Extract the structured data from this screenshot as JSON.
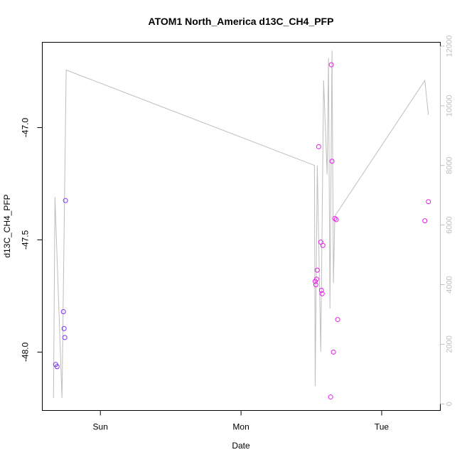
{
  "chart_data": {
    "type": "scatter",
    "title": "ATOM1 North_America d13C_CH4_PFP",
    "xlabel": "Date",
    "ylabel": "d13C_CH4_PFP",
    "x_ticks": [
      {
        "x": 0.333,
        "label": "Sun"
      },
      {
        "x": 1.333,
        "label": "Mon"
      },
      {
        "x": 2.333,
        "label": "Tue"
      }
    ],
    "y_ticks": [
      {
        "y": -47.0,
        "label": "-47.0"
      },
      {
        "y": -47.5,
        "label": "-47.5"
      },
      {
        "y": -48.0,
        "label": "-48.0"
      }
    ],
    "y2_ticks": [
      {
        "y": 0,
        "label": "0"
      },
      {
        "y": 2000,
        "label": "2000"
      },
      {
        "y": 4000,
        "label": "4000"
      },
      {
        "y": 6000,
        "label": "6000"
      },
      {
        "y": 8000,
        "label": "8000"
      },
      {
        "y": 10000,
        "label": "10000"
      },
      {
        "y": 12000,
        "label": "12000"
      }
    ],
    "xlim": [
      -0.08,
      2.75
    ],
    "ylim": [
      -48.26,
      -46.62
    ],
    "y2lim": [
      -220,
      12130
    ],
    "series": [
      {
        "color": "#7b2ff7",
        "points": [
          {
            "x": 0.015,
            "y": -48.055
          },
          {
            "x": 0.025,
            "y": -48.065
          },
          {
            "x": 0.07,
            "y": -47.82
          },
          {
            "x": 0.075,
            "y": -47.895
          },
          {
            "x": 0.08,
            "y": -47.935
          },
          {
            "x": 0.085,
            "y": -47.325
          }
        ]
      },
      {
        "color": "#e81ee8",
        "points": [
          {
            "x": 1.86,
            "y": -47.685
          },
          {
            "x": 1.865,
            "y": -47.7
          },
          {
            "x": 1.87,
            "y": -47.675
          },
          {
            "x": 1.875,
            "y": -47.635
          },
          {
            "x": 1.885,
            "y": -47.085
          },
          {
            "x": 1.9,
            "y": -47.51
          },
          {
            "x": 1.905,
            "y": -47.725
          },
          {
            "x": 1.91,
            "y": -47.74
          },
          {
            "x": 1.915,
            "y": -47.525
          },
          {
            "x": 1.97,
            "y": -48.2
          },
          {
            "x": 1.975,
            "y": -46.72
          },
          {
            "x": 1.98,
            "y": -47.15
          },
          {
            "x": 1.99,
            "y": -48.0
          },
          {
            "x": 2.0,
            "y": -47.405
          },
          {
            "x": 2.01,
            "y": -47.41
          },
          {
            "x": 2.02,
            "y": -47.855
          },
          {
            "x": 2.64,
            "y": -47.415
          },
          {
            "x": 2.665,
            "y": -47.33
          }
        ]
      }
    ],
    "y2_series": {
      "color": "#bebebe",
      "points": [
        {
          "x": 0.0,
          "y2": 200
        },
        {
          "x": 0.01,
          "y2": 6950
        },
        {
          "x": 0.06,
          "y2": 200
        },
        {
          "x": 0.09,
          "y2": 11200
        },
        {
          "x": 1.855,
          "y2": 8000
        },
        {
          "x": 1.86,
          "y2": 600
        },
        {
          "x": 1.875,
          "y2": 8000
        },
        {
          "x": 1.9,
          "y2": 1750
        },
        {
          "x": 1.92,
          "y2": 10850
        },
        {
          "x": 1.945,
          "y2": 7700
        },
        {
          "x": 1.955,
          "y2": 11600
        },
        {
          "x": 1.965,
          "y2": 3200
        },
        {
          "x": 1.98,
          "y2": 11850
        },
        {
          "x": 1.99,
          "y2": 4050
        },
        {
          "x": 2.0,
          "y2": 6300
        },
        {
          "x": 2.64,
          "y2": 10850
        },
        {
          "x": 2.665,
          "y2": 9700
        }
      ]
    },
    "grid": false
  }
}
